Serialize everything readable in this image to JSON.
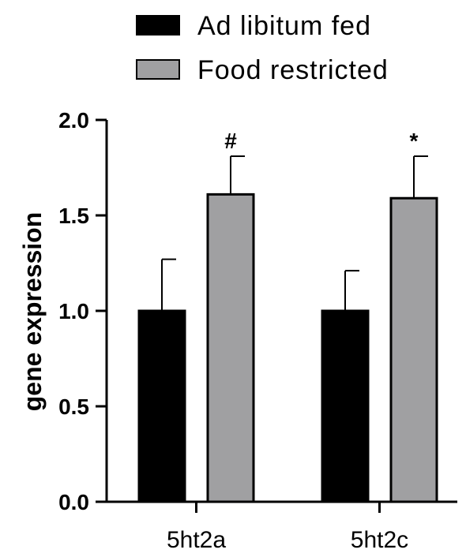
{
  "chart_data": {
    "type": "bar",
    "categories": [
      "5ht2a",
      "5ht2c"
    ],
    "series": [
      {
        "name": "Ad libitum fed",
        "color": "#000000",
        "values": [
          1.0,
          1.0
        ],
        "error": [
          0.27,
          0.21
        ]
      },
      {
        "name": "Food restricted",
        "color": "#a0a0a2",
        "values": [
          1.61,
          1.59
        ],
        "error": [
          0.2,
          0.22
        ]
      }
    ],
    "annotations": [
      {
        "category": "5ht2a",
        "series": "Food restricted",
        "text": "#"
      },
      {
        "category": "5ht2c",
        "series": "Food restricted",
        "text": "*"
      }
    ],
    "ylabel": "gene expression",
    "xlabel": "",
    "title": "",
    "ylim": [
      0,
      2.0
    ],
    "yticks": [
      "0.0",
      "0.5",
      "1.0",
      "1.5",
      "2.0"
    ],
    "legend_position": "top",
    "grid": false
  }
}
